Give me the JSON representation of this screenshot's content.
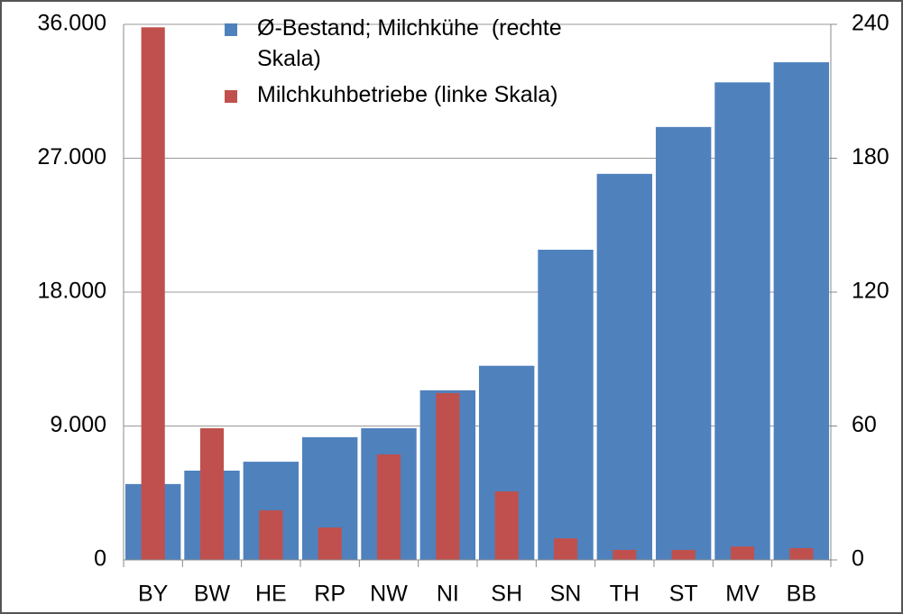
{
  "chart_data": {
    "type": "bar",
    "categories": [
      "BY",
      "BW",
      "HE",
      "RP",
      "NW",
      "NI",
      "SH",
      "SN",
      "TH",
      "ST",
      "MV",
      "BB"
    ],
    "series": [
      {
        "name": "Ø-Bestand; Milchkühe  (rechte Skala)",
        "color": "#4f81bd",
        "axis": "y2",
        "values": [
          34,
          40,
          44,
          55,
          59,
          76,
          87,
          139,
          173,
          194,
          214,
          223
        ]
      },
      {
        "name": "Milchkuhbetriebe (linke Skala)",
        "color": "#c0504d",
        "values": [
          35800,
          8850,
          3330,
          2180,
          7090,
          11210,
          4600,
          1450,
          670,
          670,
          900,
          790
        ]
      }
    ],
    "ylim": [
      0,
      36000
    ],
    "yticks": [
      0,
      {
        "value": 9000,
        "label": "9.000"
      },
      {
        "value": 18000,
        "label": "18.000"
      },
      {
        "value": 27000,
        "label": "27.000"
      },
      {
        "value": 36000,
        "label": "36.000"
      }
    ],
    "y2lim": [
      0,
      240
    ],
    "y2ticks": [
      0,
      60,
      120,
      180,
      240
    ],
    "grid": true,
    "legend": "top"
  }
}
